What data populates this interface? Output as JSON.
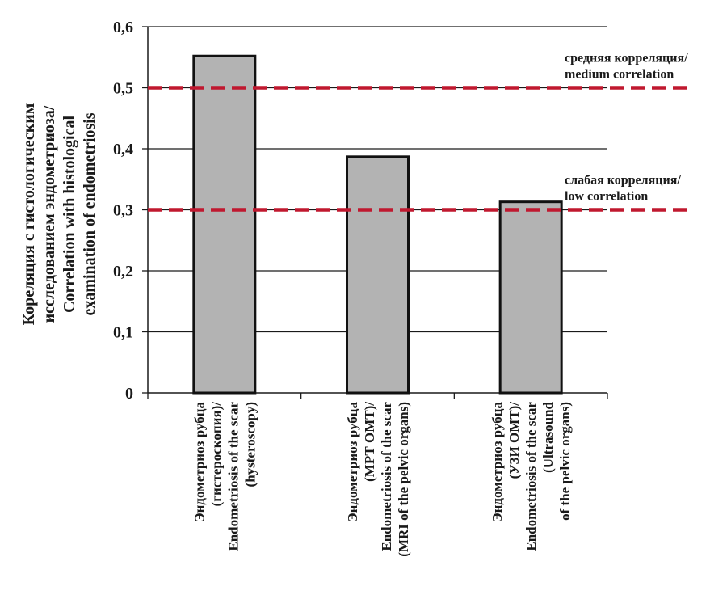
{
  "chart_data": {
    "type": "bar",
    "ylabel_lines": [
      "Кореляция с гистологическим",
      "исследованием эндометриоза/",
      "Correlation with histological",
      "examination of endometriosis"
    ],
    "ylim": [
      0,
      0.6
    ],
    "yticks": [
      {
        "value": 0,
        "label": "0"
      },
      {
        "value": 0.1,
        "label": "0,1"
      },
      {
        "value": 0.2,
        "label": "0,2"
      },
      {
        "value": 0.3,
        "label": "0,3"
      },
      {
        "value": 0.4,
        "label": "0,4"
      },
      {
        "value": 0.5,
        "label": "0,5"
      },
      {
        "value": 0.6,
        "label": "0,6"
      }
    ],
    "grid": true,
    "categories": [
      {
        "lines": [
          "Эндометриоз рубца",
          "(гистероскопия)/",
          "Endometriosis of the scar",
          "(hysteroscopy)"
        ]
      },
      {
        "lines": [
          "Эндометриоз рубца",
          "(МРТ ОМТ)/",
          "Endometriosis of the scar",
          "(MRI of the pelvic organs)"
        ]
      },
      {
        "lines": [
          "Эндометриоз рубца",
          "(УЗИ ОМТ)/",
          "Endometriosis of the scar",
          "(Ultrasound",
          "of the pelvic organs)"
        ]
      }
    ],
    "values": [
      0.552,
      0.387,
      0.313
    ],
    "bar_color": "#b3b3b3",
    "reference_lines": [
      {
        "value": 0.5,
        "label_lines": [
          "средняя корреляция/",
          "medium correlation"
        ],
        "color": "#c0182f"
      },
      {
        "value": 0.3,
        "label_lines": [
          "слабая корреляция/",
          "low correlation"
        ],
        "color": "#c0182f"
      }
    ]
  }
}
